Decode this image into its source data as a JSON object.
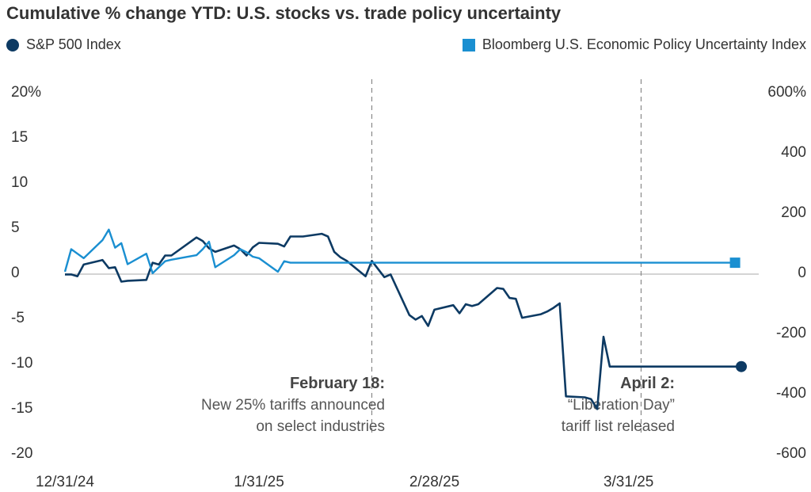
{
  "chart_data": {
    "type": "line",
    "title": "Cumulative % change YTD: U.S. stocks vs. trade policy uncertainty",
    "legend_placement": "top",
    "grid": false,
    "x_ticks": [
      "12/31/24",
      "1/31/25",
      "2/28/25",
      "3/31/25"
    ],
    "y_left": {
      "ticks": [
        "20%",
        "15",
        "10",
        "5",
        "0",
        "-5",
        "-10",
        "-15",
        "-20"
      ],
      "range": [
        -20,
        20
      ]
    },
    "y_right": {
      "ticks": [
        "600%",
        "400",
        "200",
        "0",
        "-200",
        "-400",
        "-600"
      ],
      "range": [
        -600,
        600
      ]
    },
    "series": [
      {
        "name": "S&P 500 Index",
        "axis": "left",
        "color": "#0d3a63",
        "marker": "circle",
        "x": [
          0,
          1,
          2,
          3,
          6,
          7,
          8,
          9,
          10,
          13,
          14,
          15,
          16,
          17,
          21,
          22,
          23,
          24,
          27,
          28,
          29,
          30,
          31,
          34,
          35,
          36,
          37,
          38,
          41,
          42,
          43,
          44,
          45,
          48,
          49,
          50,
          51,
          52,
          55,
          56,
          57,
          58,
          59,
          62,
          63,
          64,
          65,
          66,
          69,
          70,
          71,
          72,
          73,
          76,
          77,
          78,
          79,
          80,
          83,
          84,
          85,
          86,
          87,
          90,
          91,
          92,
          93,
          94,
          97,
          98,
          99,
          100,
          101,
          104,
          105,
          106,
          107,
          108
        ],
        "values": [
          -0.3,
          -0.3,
          -0.5,
          0.8,
          1.3,
          0.4,
          0.5,
          -1.1,
          -1.0,
          -0.9,
          1.0,
          0.8,
          1.8,
          1.8,
          3.8,
          3.4,
          2.6,
          2.2,
          2.9,
          2.5,
          1.8,
          2.7,
          3.2,
          3.1,
          2.8,
          3.9,
          3.9,
          3.9,
          4.2,
          3.9,
          2.2,
          1.6,
          1.2,
          -0.5,
          1.2,
          0.3,
          -0.6,
          -0.3,
          -4.8,
          -5.3,
          -4.9,
          -6.0,
          -4.2,
          -3.7,
          -4.6,
          -3.6,
          -3.8,
          -3.6,
          -1.8,
          -1.9,
          -2.9,
          -3.0,
          -5.1,
          -4.7,
          -4.4,
          -4.0,
          -3.5,
          -13.8,
          -13.9,
          -14.1,
          -15.2,
          -7.2,
          -10.5,
          -10.5,
          -10.5,
          -10.5,
          -10.5,
          -10.5,
          -10.5,
          -10.5,
          -10.5,
          -10.5,
          -10.5,
          -10.5,
          -10.5,
          -10.5,
          -10.5,
          -10.5
        ]
      },
      {
        "name": "Bloomberg U.S. Economic Policy Uncertainty Index",
        "axis": "right",
        "color": "#1a8fd1",
        "marker": "square",
        "x": [
          0,
          1,
          2,
          3,
          6,
          7,
          8,
          9,
          10,
          13,
          14,
          15,
          16,
          17,
          21,
          22,
          23,
          24,
          27,
          28,
          29,
          30,
          31,
          34,
          35,
          36,
          37,
          38,
          41,
          42,
          43,
          44,
          45,
          48,
          49,
          50,
          51,
          52,
          55,
          56,
          57,
          58,
          59,
          62,
          63,
          64,
          65,
          66,
          69,
          70,
          71,
          72,
          73,
          76,
          77,
          78,
          79,
          80,
          83,
          84,
          85,
          86,
          87,
          90,
          91,
          92,
          93,
          94,
          97,
          98,
          99,
          100,
          101,
          104,
          105,
          106,
          107
        ],
        "values": [
          0,
          75,
          60,
          45,
          105,
          140,
          80,
          95,
          25,
          60,
          -5,
          15,
          35,
          40,
          55,
          75,
          100,
          15,
          55,
          75,
          65,
          50,
          45,
          0,
          35,
          30,
          30,
          30,
          30,
          30,
          30,
          30,
          30,
          30,
          30,
          30,
          30,
          30,
          30,
          30,
          30,
          30,
          30,
          30,
          30,
          30,
          30,
          30,
          30,
          30,
          30,
          30,
          30,
          30,
          30,
          30,
          30,
          30,
          30,
          30,
          30,
          30,
          30,
          30,
          30,
          30,
          30,
          30,
          30,
          30,
          30,
          30,
          30,
          30,
          30,
          30,
          30
        ]
      }
    ],
    "annotations": [
      {
        "at": "February 18",
        "lines": [
          "February 18:",
          "New 25% tariffs announced",
          "on select industries"
        ]
      },
      {
        "at": "April 2",
        "lines": [
          "April 2:",
          "“Liberation Day”",
          "tariff list released"
        ]
      }
    ]
  }
}
